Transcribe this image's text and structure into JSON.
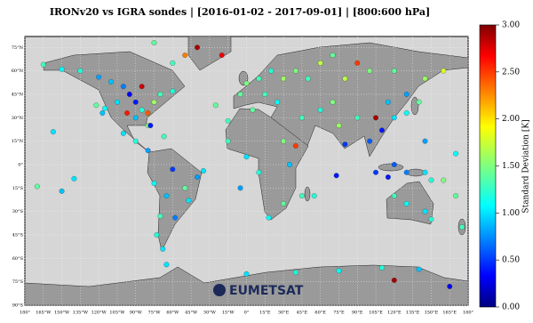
{
  "chart_data": {
    "type": "scatter-map",
    "title": "IRONv20 vs IGRA sondes | [2016-01-02 - 2017-09-01] | [800:600 hPa]",
    "colorbar_label": "Standard Deviation [K]",
    "logo": "EUMETSAT",
    "colormap": "jet",
    "xlim": [
      -180,
      180
    ],
    "ylim": [
      -90,
      82
    ],
    "clim": [
      0,
      3
    ],
    "xticks": [
      {
        "value": -180,
        "label": "180°"
      },
      {
        "value": -165,
        "label": "165°W"
      },
      {
        "value": -150,
        "label": "150°W"
      },
      {
        "value": -135,
        "label": "135°W"
      },
      {
        "value": -120,
        "label": "120°W"
      },
      {
        "value": -105,
        "label": "105°W"
      },
      {
        "value": -90,
        "label": "90°W"
      },
      {
        "value": -75,
        "label": "75°W"
      },
      {
        "value": -60,
        "label": "60°W"
      },
      {
        "value": -45,
        "label": "45°W"
      },
      {
        "value": -30,
        "label": "30°W"
      },
      {
        "value": -15,
        "label": "15°W"
      },
      {
        "value": 0,
        "label": "0°"
      },
      {
        "value": 15,
        "label": "15°E"
      },
      {
        "value": 30,
        "label": "30°E"
      },
      {
        "value": 45,
        "label": "45°E"
      },
      {
        "value": 60,
        "label": "60°E"
      },
      {
        "value": 75,
        "label": "75°E"
      },
      {
        "value": 90,
        "label": "90°E"
      },
      {
        "value": 105,
        "label": "105°E"
      },
      {
        "value": 120,
        "label": "120°E"
      },
      {
        "value": 135,
        "label": "135°E"
      },
      {
        "value": 150,
        "label": "150°E"
      },
      {
        "value": 165,
        "label": "165°E"
      },
      {
        "value": 180,
        "label": "180°"
      }
    ],
    "yticks": [
      {
        "value": 75,
        "label": "75°N"
      },
      {
        "value": 60,
        "label": "60°N"
      },
      {
        "value": 45,
        "label": "45°N"
      },
      {
        "value": 30,
        "label": "30°N"
      },
      {
        "value": 15,
        "label": "15°N"
      },
      {
        "value": 0,
        "label": "0°"
      },
      {
        "value": -15,
        "label": "15°S"
      },
      {
        "value": -30,
        "label": "30°S"
      },
      {
        "value": -45,
        "label": "45°S"
      },
      {
        "value": -60,
        "label": "60°S"
      },
      {
        "value": -75,
        "label": "75°S"
      },
      {
        "value": -90,
        "label": "90°S"
      }
    ],
    "cticks": [
      {
        "value": 0,
        "label": "0.00"
      },
      {
        "value": 0.5,
        "label": "0.50"
      },
      {
        "value": 1,
        "label": "1.00"
      },
      {
        "value": 1.5,
        "label": "1.50"
      },
      {
        "value": 2,
        "label": "2.00"
      },
      {
        "value": 2.5,
        "label": "2.50"
      },
      {
        "value": 3,
        "label": "3.00"
      }
    ],
    "x": [
      -150,
      -165,
      -135,
      -120,
      -110,
      -100,
      -95,
      -90,
      -85,
      -80,
      -97,
      -105,
      -115,
      -122,
      -117,
      -75,
      -70,
      -60,
      -80,
      -90,
      -100,
      -90,
      -80,
      -78,
      -67,
      -85,
      -50,
      -40,
      -20,
      -60,
      -75,
      -60,
      -50,
      -47,
      -58,
      -70,
      -75,
      -65,
      -40,
      -68,
      -73,
      0,
      10,
      20,
      30,
      -5,
      15,
      25,
      40,
      50,
      60,
      70,
      -15,
      0,
      10,
      30,
      18,
      35,
      30,
      45,
      40,
      5,
      80,
      100,
      120,
      130,
      115,
      120,
      110,
      100,
      90,
      105,
      75,
      80,
      60,
      45,
      70,
      140,
      130,
      145,
      160,
      90,
      105,
      115,
      120,
      130,
      145,
      150,
      120,
      130,
      145,
      150,
      175,
      170,
      160,
      145,
      170,
      -157,
      -170,
      -150,
      -140,
      110,
      140,
      -65,
      75,
      165,
      120,
      40,
      0,
      -25,
      -15,
      -5,
      55,
      73,
      -35
    ],
    "y": [
      61,
      64,
      60,
      56,
      53,
      50,
      45,
      40,
      35,
      33,
      33,
      40,
      36,
      38,
      33,
      40,
      45,
      47,
      25,
      30,
      20,
      15,
      9,
      25,
      18,
      50,
      70,
      75,
      70,
      65,
      78,
      -3,
      -15,
      -23,
      -34,
      -33,
      -12,
      -20,
      -8,
      -54,
      -45,
      52,
      55,
      60,
      55,
      45,
      45,
      40,
      60,
      55,
      65,
      70,
      15,
      5,
      -5,
      -25,
      -34,
      0,
      15,
      -20,
      12,
      35,
      55,
      60,
      60,
      45,
      40,
      30,
      22,
      15,
      30,
      30,
      25,
      13,
      35,
      30,
      40,
      40,
      33,
      55,
      60,
      65,
      -5,
      -8,
      0,
      -5,
      -5,
      -10,
      -20,
      -25,
      -30,
      -35,
      -40,
      -20,
      -10,
      15,
      7,
      21,
      -14,
      -17,
      -9,
      -66,
      -67,
      -64,
      -68,
      -78,
      -74,
      -69,
      -70,
      38,
      28,
      -15,
      -20,
      -7,
      -4
    ],
    "values": [
      1.1,
      1.3,
      1.2,
      0.8,
      0.9,
      0.7,
      0.3,
      0.4,
      1.2,
      2.4,
      2.6,
      1.0,
      1.1,
      1.4,
      0.9,
      1.6,
      1.3,
      1.2,
      1.5,
      0.9,
      1.0,
      1.2,
      0.8,
      0.4,
      1.3,
      2.8,
      2.3,
      2.9,
      2.7,
      1.3,
      1.4,
      0.5,
      1.4,
      1.0,
      0.7,
      1.3,
      1.1,
      0.9,
      0.8,
      1.0,
      1.2,
      1.5,
      1.3,
      1.2,
      1.6,
      1.4,
      1.3,
      1.1,
      1.5,
      1.3,
      1.7,
      1.4,
      1.3,
      1.0,
      1.2,
      1.4,
      1.1,
      0.9,
      1.5,
      1.3,
      2.5,
      1.4,
      1.7,
      1.5,
      1.4,
      0.8,
      0.9,
      1.0,
      0.4,
      0.6,
      1.3,
      2.9,
      1.6,
      0.5,
      1.2,
      1.3,
      1.5,
      1.4,
      1.1,
      1.6,
      1.8,
      2.5,
      0.5,
      0.4,
      0.6,
      0.7,
      1.0,
      1.2,
      1.3,
      1.1,
      1.0,
      1.2,
      1.3,
      1.4,
      1.5,
      0.8,
      1.1,
      1.0,
      1.4,
      0.9,
      1.0,
      1.2,
      0.9,
      1.0,
      1.1,
      0.3,
      2.9,
      1.2,
      1.0,
      1.4,
      1.3,
      0.8,
      1.2,
      0.4,
      1.0
    ]
  }
}
